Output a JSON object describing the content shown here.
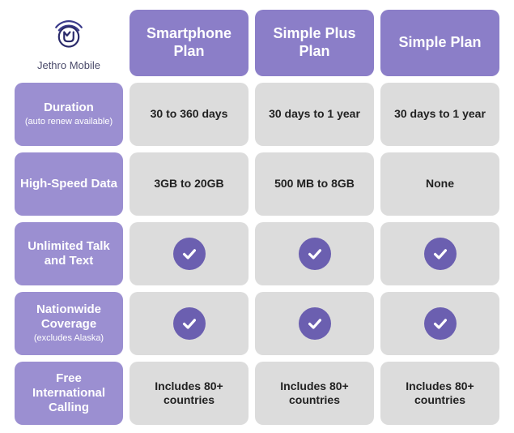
{
  "brand": {
    "name": "Jethro Mobile",
    "logo_stroke": "#3a3a8a",
    "logo_accent": "#2a2a6a"
  },
  "colors": {
    "header_bg": "#8b7ec8",
    "header_fg": "#ffffff",
    "row_bg": "#9b8fd1",
    "row_fg": "#ffffff",
    "cell_bg": "#dcdcdc",
    "cell_fg": "#222222",
    "check_bg": "#6b5fb0",
    "check_fg": "#ffffff",
    "page_bg": "#ffffff"
  },
  "columns": [
    {
      "label": "Smartphone Plan"
    },
    {
      "label": "Simple Plus Plan"
    },
    {
      "label": "Simple Plan"
    }
  ],
  "rows": [
    {
      "label": "Duration",
      "sublabel": "(auto renew available)",
      "cells": [
        {
          "type": "text",
          "value": "30 to 360 days"
        },
        {
          "type": "text",
          "value": "30 days to 1 year"
        },
        {
          "type": "text",
          "value": "30 days to 1 year"
        }
      ]
    },
    {
      "label": "High-Speed Data",
      "sublabel": "",
      "cells": [
        {
          "type": "text",
          "value": "3GB to 20GB"
        },
        {
          "type": "text",
          "value": "500 MB to 8GB"
        },
        {
          "type": "text",
          "value": "None"
        }
      ]
    },
    {
      "label": "Unlimited Talk and Text",
      "sublabel": "",
      "cells": [
        {
          "type": "check"
        },
        {
          "type": "check"
        },
        {
          "type": "check"
        }
      ]
    },
    {
      "label": "Nationwide Coverage",
      "sublabel": "(excludes Alaska)",
      "cells": [
        {
          "type": "check"
        },
        {
          "type": "check"
        },
        {
          "type": "check"
        }
      ]
    },
    {
      "label": "Free International Calling",
      "sublabel": "",
      "cells": [
        {
          "type": "text",
          "value": "Includes 80+ countries"
        },
        {
          "type": "text",
          "value": "Includes 80+ countries"
        },
        {
          "type": "text",
          "value": "Includes 80+ countries"
        }
      ]
    }
  ]
}
